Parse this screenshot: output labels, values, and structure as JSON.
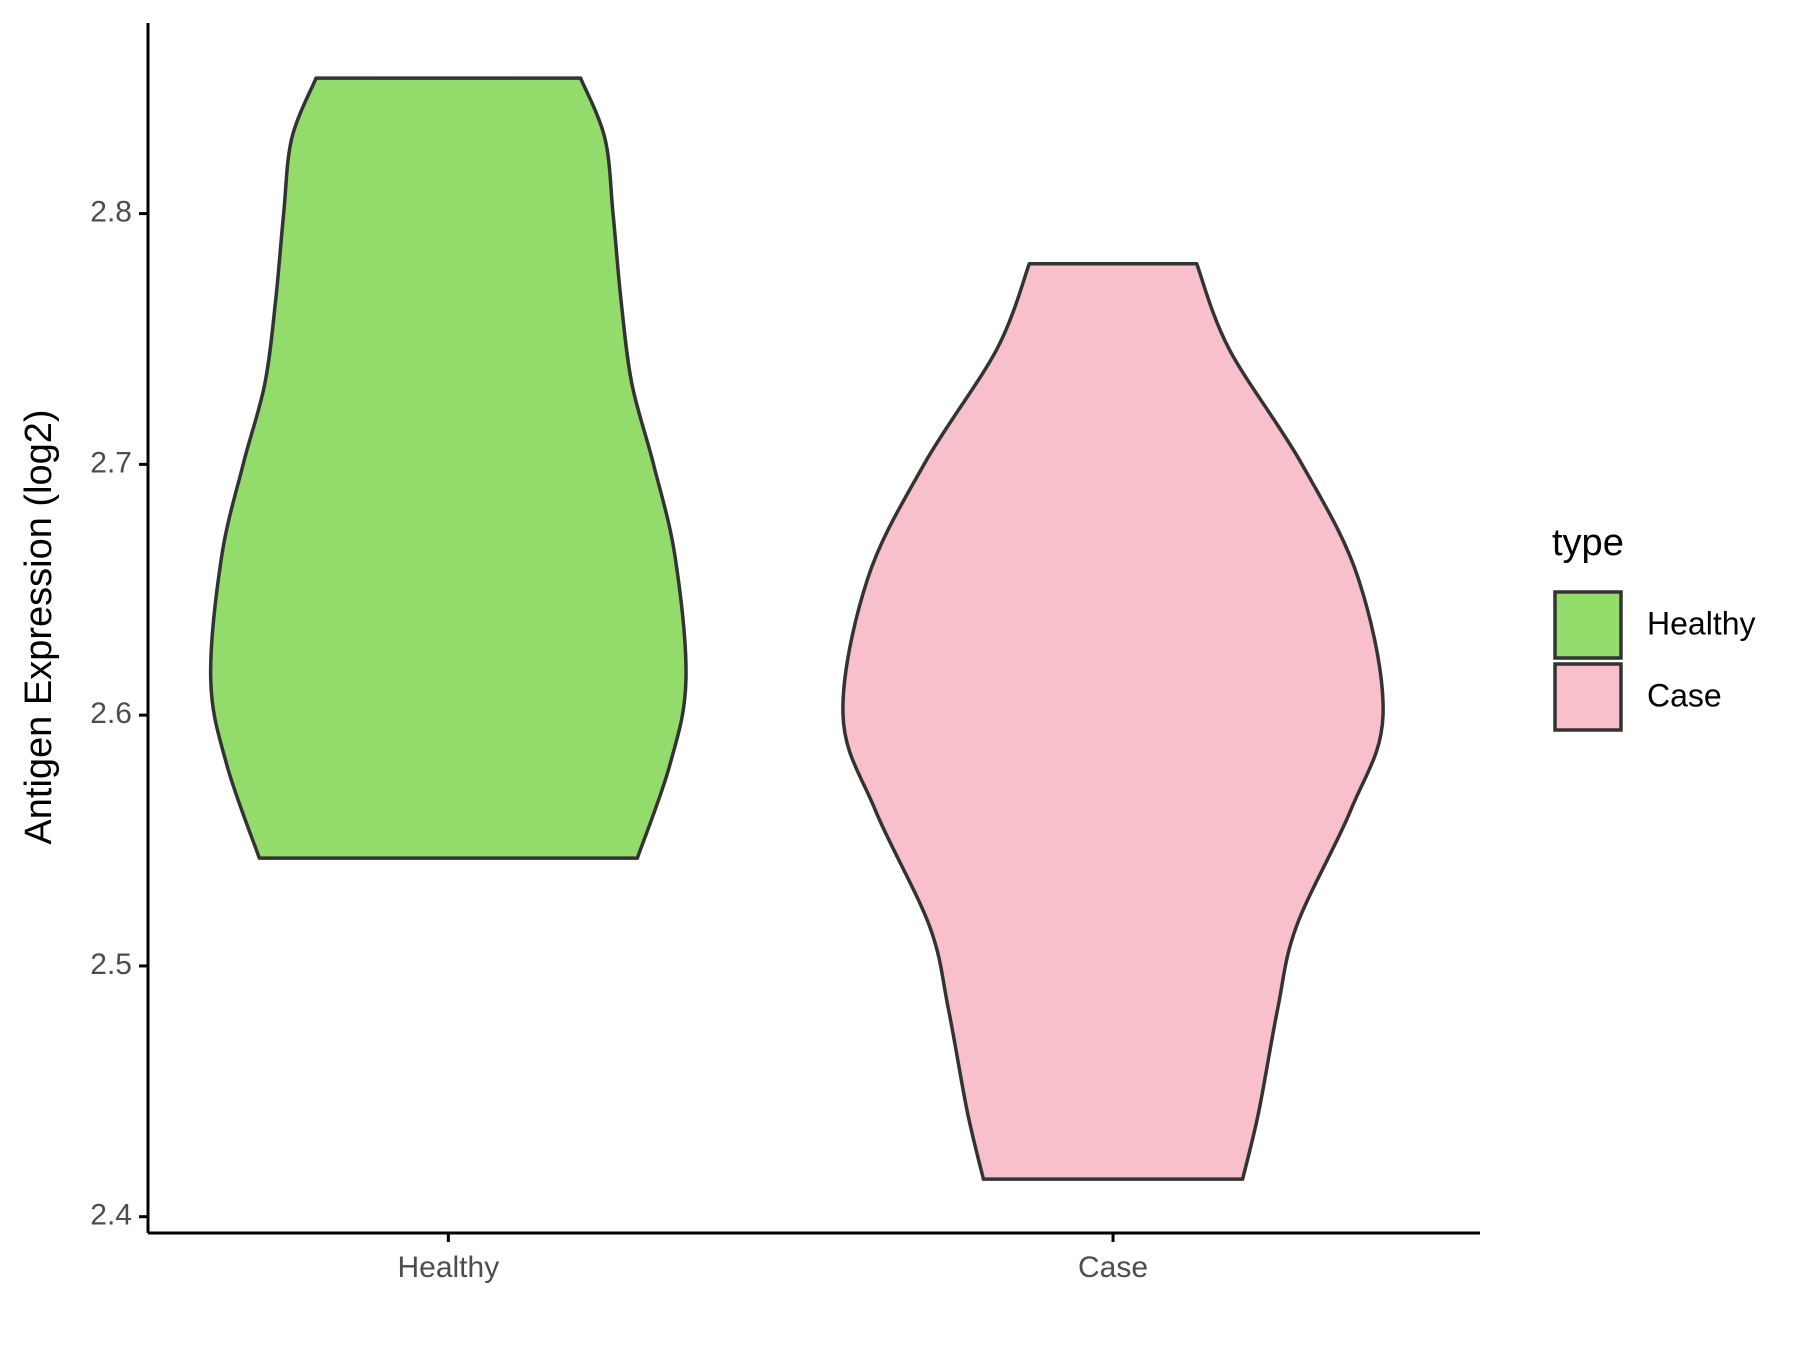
{
  "chart_data": {
    "type": "violin",
    "y_label": "Antigen Expression (log2)",
    "categories": [
      "Healthy",
      "Case"
    ],
    "ylim": [
      2.3935,
      2.876
    ],
    "yticks": [
      2.4,
      2.5,
      2.6,
      2.7,
      2.8
    ],
    "legend_title": "type",
    "legend_position": "right",
    "outline_color": "#333333",
    "series": [
      {
        "name": "Healthy",
        "color": "#93dc6b",
        "y": [
          2.854,
          2.83,
          2.8,
          2.765,
          2.732,
          2.7,
          2.663,
          2.614,
          2.58,
          2.543
        ],
        "width": [
          0.49,
          0.58,
          0.61,
          0.64,
          0.68,
          0.76,
          0.84,
          0.88,
          0.82,
          0.7
        ]
      },
      {
        "name": "Case",
        "color": "#f7c0cb",
        "y": [
          2.78,
          2.746,
          2.7,
          2.654,
          2.6,
          2.562,
          2.516,
          2.483,
          2.442,
          2.415
        ],
        "width": [
          0.31,
          0.43,
          0.7,
          0.91,
          1.0,
          0.88,
          0.68,
          0.61,
          0.54,
          0.48
        ]
      }
    ]
  }
}
